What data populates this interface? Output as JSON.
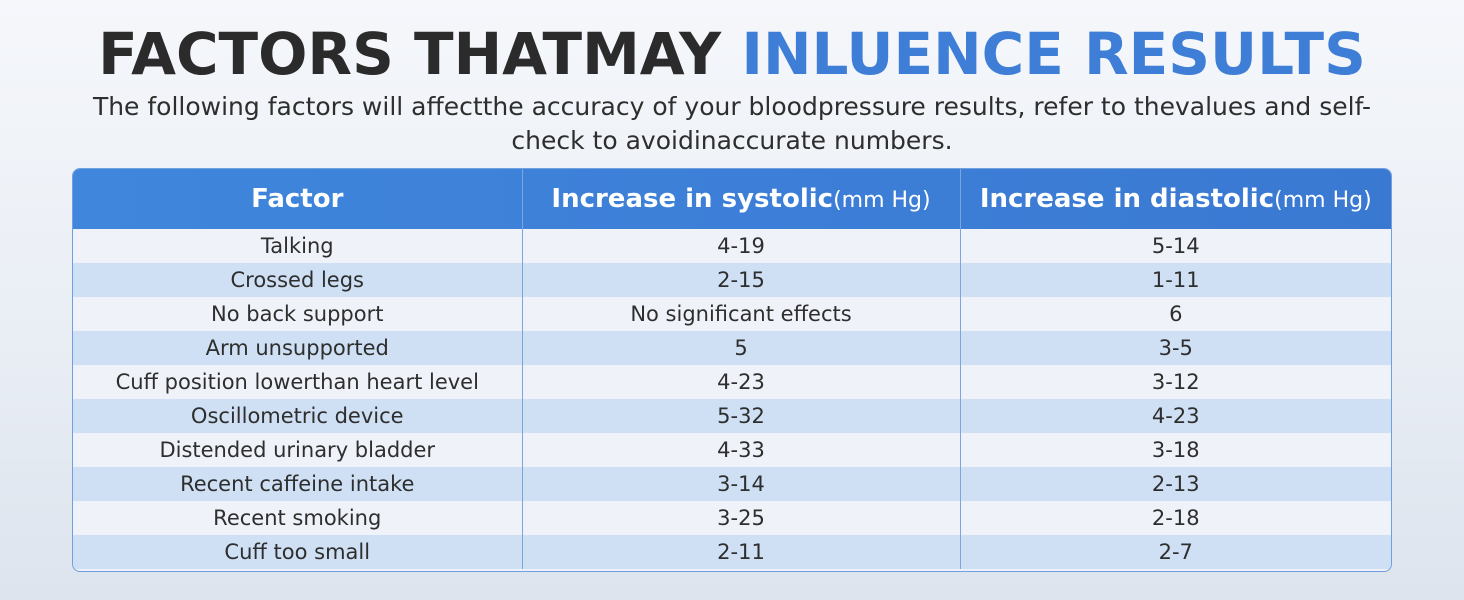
{
  "title": {
    "dark": "FACTORS THATMAY",
    "accent": "INLUENCE RESULTS",
    "dark_color": "#2b2b2b",
    "accent_color": "#3e7ed6"
  },
  "subtitle": "The following factors will affectthe accuracy of your bloodpressure results, refer to thevalues and self-check to avoidinaccurate numbers.",
  "table": {
    "header_color": "#3f86dc",
    "columns": [
      {
        "label": "Factor",
        "unit": ""
      },
      {
        "label": "Increase in systolic",
        "unit": "(mm Hg)"
      },
      {
        "label": "Increase in diastolic",
        "unit": "(mm Hg)"
      }
    ],
    "rows": [
      {
        "factor": "Talking",
        "systolic": "4-19",
        "diastolic": "5-14"
      },
      {
        "factor": "Crossed legs",
        "systolic": "2-15",
        "diastolic": "1-11"
      },
      {
        "factor": "No back support",
        "systolic": "No significant effects",
        "diastolic": "6"
      },
      {
        "factor": "Arm unsupported",
        "systolic": "5",
        "diastolic": "3-5"
      },
      {
        "factor": "Cuff position lowerthan heart level",
        "systolic": "4-23",
        "diastolic": "3-12"
      },
      {
        "factor": "Oscillometric device",
        "systolic": "5-32",
        "diastolic": "4-23"
      },
      {
        "factor": "Distended urinary bladder",
        "systolic": "4-33",
        "diastolic": "3-18"
      },
      {
        "factor": "Recent caffeine intake",
        "systolic": "3-14",
        "diastolic": "2-13"
      },
      {
        "factor": "Recent smoking",
        "systolic": "3-25",
        "diastolic": "2-18"
      },
      {
        "factor": "Cuff too small",
        "systolic": "2-11",
        "diastolic": "2-7"
      }
    ]
  }
}
